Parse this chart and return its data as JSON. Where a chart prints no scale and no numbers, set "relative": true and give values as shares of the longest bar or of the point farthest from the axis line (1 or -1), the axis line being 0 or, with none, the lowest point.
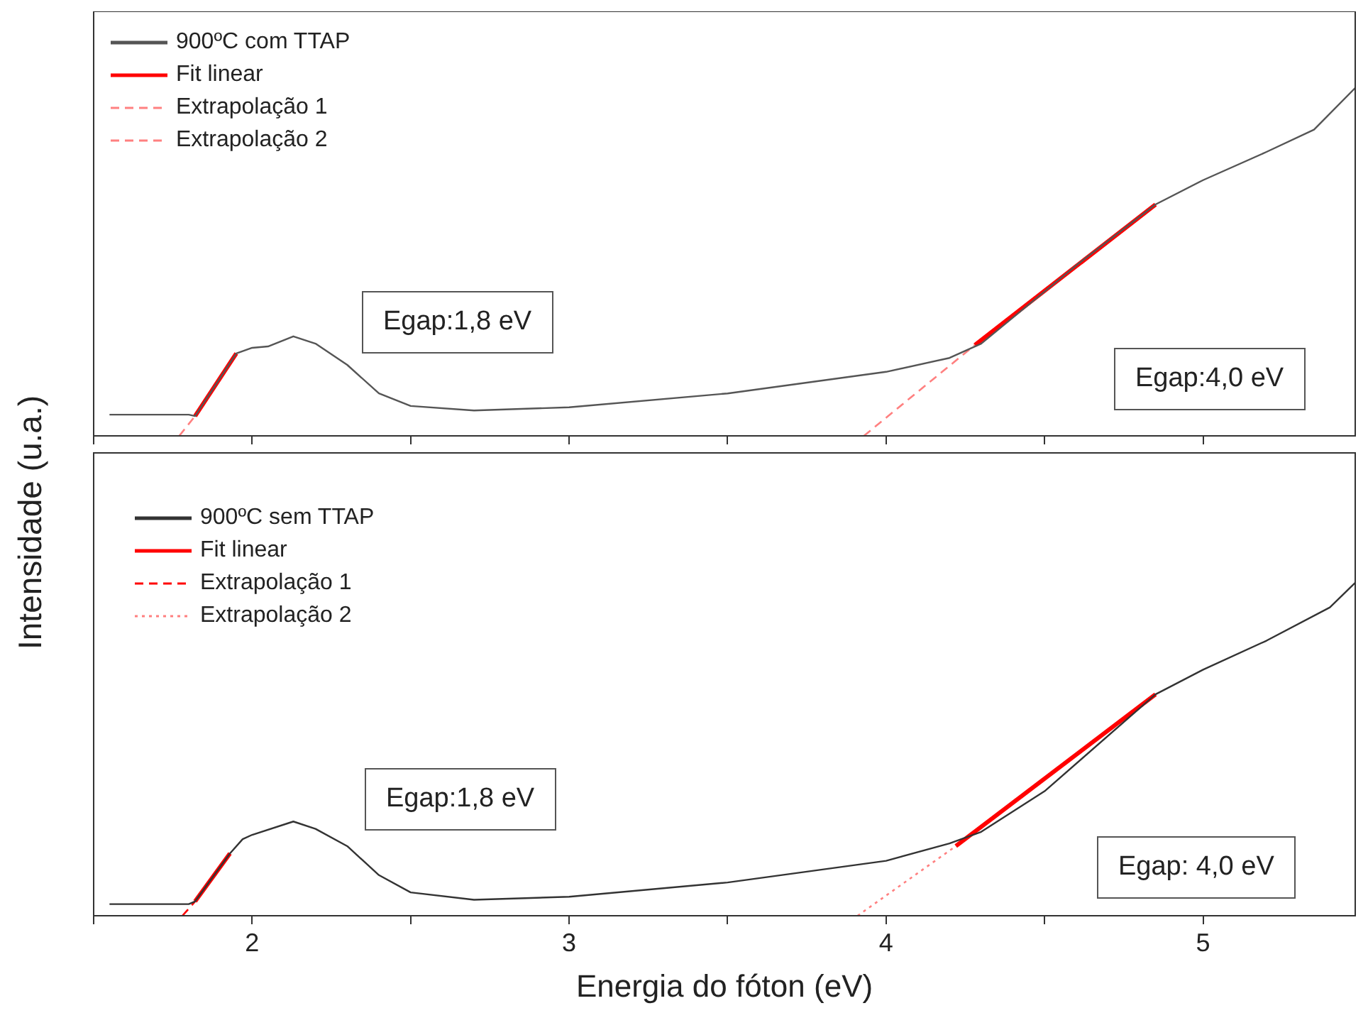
{
  "chart_data": [
    {
      "type": "line",
      "relative": true,
      "ylabel": "Intensidade (u.a.)",
      "xlim": [
        1.5,
        5.48
      ],
      "xticks": [
        {
          "value": 1.5,
          "label": null
        },
        {
          "value": 2,
          "label": null
        },
        {
          "value": 2.5,
          "label": null
        },
        {
          "value": 3,
          "label": null
        },
        {
          "value": 3.5,
          "label": null
        },
        {
          "value": 4,
          "label": null
        },
        {
          "value": 4.5,
          "label": null
        },
        {
          "value": 5,
          "label": null
        }
      ],
      "tick_labels": false,
      "grid": false,
      "legend": "top left",
      "annotations": [
        "Egap:1,8 eV",
        "Egap:4,0 eV"
      ],
      "series": [
        {
          "name": "900ºC com TTAP",
          "color": "#555555",
          "line_style": "solid",
          "x": [
            1.55,
            1.8,
            1.82,
            1.95,
            2.0,
            2.05,
            2.13,
            2.2,
            2.3,
            2.4,
            2.5,
            2.7,
            3.0,
            3.5,
            4.0,
            4.2,
            4.3,
            4.6,
            4.85,
            5.0,
            5.2,
            5.35,
            5.48
          ],
          "values": [
            0.061,
            0.061,
            0.057,
            0.237,
            0.253,
            0.257,
            0.286,
            0.265,
            0.204,
            0.122,
            0.086,
            0.073,
            0.082,
            0.122,
            0.184,
            0.224,
            0.265,
            0.49,
            0.665,
            0.735,
            0.816,
            0.88,
            1.0
          ]
        },
        {
          "name": "Fit linear",
          "color": "#ff0000",
          "line_style": "solid",
          "x": [
            1.82,
            1.95
          ],
          "values": [
            0.057,
            0.237
          ]
        },
        {
          "name": "Extrapolação 1",
          "color": "#ff8080",
          "line_style": "dashed",
          "x": [
            1.77,
            1.82
          ],
          "values": [
            0,
            0.057
          ]
        },
        {
          "name": "Extrapolação 2",
          "color": "#ff8080",
          "line_style": "dashed",
          "x": [
            3.93,
            4.28
          ],
          "values": [
            0,
            0.261
          ]
        },
        {
          "color": "#ff0000",
          "line_style": "solid",
          "x": [
            4.28,
            4.85
          ],
          "values": [
            0.261,
            0.665
          ]
        }
      ]
    },
    {
      "type": "line",
      "relative": true,
      "xlabel": "Energia do fóton (eV)",
      "xlim": [
        1.5,
        5.48
      ],
      "xticks": [
        {
          "value": 1.5,
          "label": null
        },
        2,
        {
          "value": 2.5,
          "label": null
        },
        3,
        {
          "value": 3.5,
          "label": null
        },
        4,
        {
          "value": 4.5,
          "label": null
        },
        5
      ],
      "tick_labels": "x",
      "grid": false,
      "legend": "top left",
      "annotations": [
        "Egap:1,8 eV",
        "Egap: 4,0 eV"
      ],
      "series": [
        {
          "name": "900ºC sem TTAP",
          "color": "#333333",
          "line_style": "solid",
          "x": [
            1.55,
            1.8,
            1.82,
            1.93,
            1.97,
            2.0,
            2.13,
            2.2,
            2.3,
            2.4,
            2.5,
            2.7,
            3.0,
            3.5,
            4.0,
            4.2,
            4.3,
            4.5,
            4.85,
            5.0,
            5.2,
            5.4,
            5.48
          ],
          "values": [
            0.035,
            0.035,
            0.043,
            0.187,
            0.23,
            0.243,
            0.283,
            0.261,
            0.209,
            0.122,
            0.07,
            0.048,
            0.057,
            0.1,
            0.165,
            0.217,
            0.252,
            0.374,
            0.665,
            0.739,
            0.826,
            0.926,
            1.0
          ]
        },
        {
          "name": "Fit linear",
          "color": "#ff0000",
          "line_style": "solid",
          "x": [
            1.82,
            1.93
          ],
          "values": [
            0.043,
            0.187
          ]
        },
        {
          "name": "Extrapolação 1",
          "color": "#ff0000",
          "line_style": "dashed",
          "x": [
            1.78,
            1.82
          ],
          "values": [
            0,
            0.043
          ]
        },
        {
          "name": "Extrapolação 2",
          "color": "#ff8080",
          "line_style": "dotted",
          "x": [
            3.91,
            4.22
          ],
          "values": [
            0,
            0.209
          ]
        },
        {
          "color": "#ff0000",
          "line_style": "solid",
          "x": [
            4.22,
            4.85
          ],
          "values": [
            0.209,
            0.665
          ]
        }
      ]
    }
  ]
}
